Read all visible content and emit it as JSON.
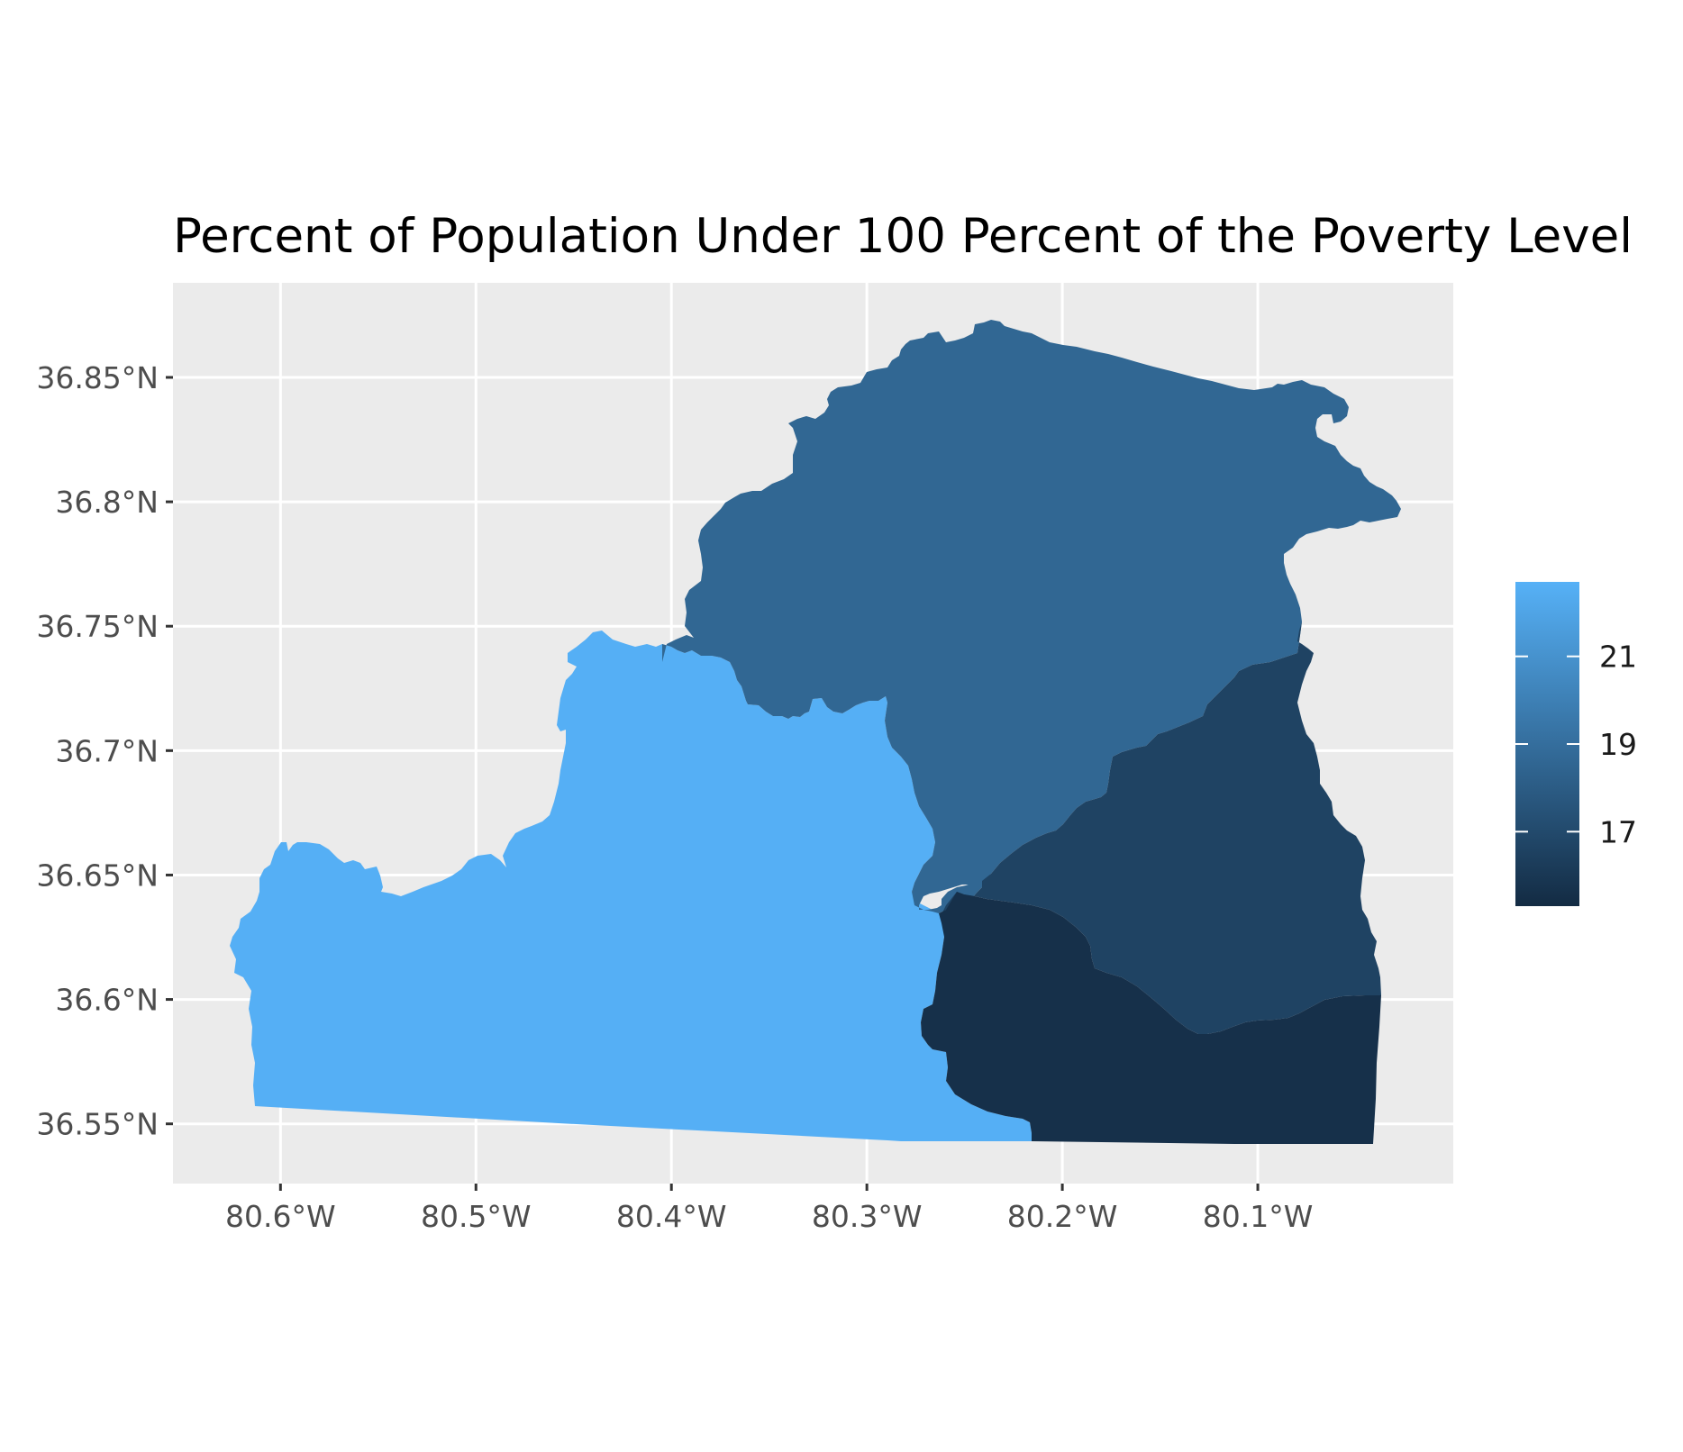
{
  "title": "Percent of Population Under 100 Percent of the Poverty Level",
  "x_axis": {
    "ticks": [
      {
        "value": -80.6,
        "label": "80.6°W"
      },
      {
        "value": -80.5,
        "label": "80.5°W"
      },
      {
        "value": -80.4,
        "label": "80.4°W"
      },
      {
        "value": -80.3,
        "label": "80.3°W"
      },
      {
        "value": -80.2,
        "label": "80.2°W"
      },
      {
        "value": -80.1,
        "label": "80.1°W"
      }
    ]
  },
  "y_axis": {
    "ticks": [
      {
        "value": 36.85,
        "label": "36.85°N"
      },
      {
        "value": 36.8,
        "label": "36.8°N"
      },
      {
        "value": 36.75,
        "label": "36.75°N"
      },
      {
        "value": 36.7,
        "label": "36.7°N"
      },
      {
        "value": 36.65,
        "label": "36.65°N"
      },
      {
        "value": 36.6,
        "label": "36.6°N"
      },
      {
        "value": 36.55,
        "label": "36.55°N"
      }
    ]
  },
  "legend": {
    "type": "continuous-colorbar",
    "title": "",
    "breaks": [
      {
        "value": 17,
        "label": "17"
      },
      {
        "value": 19,
        "label": "19"
      },
      {
        "value": 21,
        "label": "21"
      }
    ],
    "min": 15.3,
    "max": 22.7,
    "low_color": "#132B43",
    "high_color": "#56B1F7"
  },
  "colors": {
    "panel_background": "#EBEBEB",
    "grid": "#FFFFFF",
    "tick_text": "#4D4D4D"
  },
  "chart_data": {
    "type": "choropleth",
    "x_range": [
      -80.655,
      -80.0
    ],
    "y_range": [
      36.526,
      36.888
    ],
    "regions": [
      {
        "id": "west",
        "value": 22.6
      },
      {
        "id": "north",
        "value": 18.6
      },
      {
        "id": "southeast",
        "value": 16.6
      },
      {
        "id": "east",
        "value": 15.6
      }
    ]
  }
}
